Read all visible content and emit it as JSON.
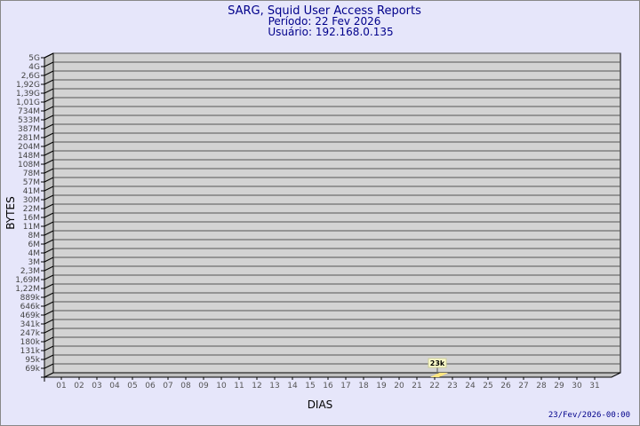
{
  "chart_data": {
    "type": "bar",
    "title": "SARG, Squid User Access Reports",
    "subtitle_period": "Período: 22 Fev 2026",
    "subtitle_user": "Usuário: 192.168.0.135",
    "xlabel": "DIAS",
    "ylabel": "BYTES",
    "footer": "23/Fev/2026-00:00",
    "grid": true,
    "y_tick_labels": [
      "69k",
      "95k",
      "131k",
      "180k",
      "247k",
      "341k",
      "469k",
      "646k",
      "889k",
      "1,22M",
      "1,69M",
      "2,3M",
      "3M",
      "4M",
      "6M",
      "8M",
      "11M",
      "16M",
      "22M",
      "30M",
      "41M",
      "57M",
      "78M",
      "108M",
      "148M",
      "204M",
      "281M",
      "387M",
      "533M",
      "734M",
      "1,01G",
      "1,39G",
      "1,92G",
      "2,6G",
      "4G",
      "5G"
    ],
    "categories": [
      "01",
      "02",
      "03",
      "04",
      "05",
      "06",
      "07",
      "08",
      "09",
      "10",
      "11",
      "12",
      "13",
      "14",
      "15",
      "16",
      "17",
      "18",
      "19",
      "20",
      "21",
      "22",
      "23",
      "24",
      "25",
      "26",
      "27",
      "28",
      "29",
      "30",
      "31"
    ],
    "values": [
      null,
      null,
      null,
      null,
      null,
      null,
      null,
      null,
      null,
      null,
      null,
      null,
      null,
      null,
      null,
      null,
      null,
      null,
      null,
      null,
      null,
      23000,
      null,
      null,
      null,
      null,
      null,
      null,
      null,
      null,
      null
    ],
    "data_labels": {
      "22": "23k"
    },
    "colors": {
      "background": "#e6e6fa",
      "plot": "#d3d3d3",
      "wall": "#c0c0c0",
      "title": "#00008b",
      "bar": "#ffe680",
      "label_bg": "#ffffcc"
    }
  }
}
